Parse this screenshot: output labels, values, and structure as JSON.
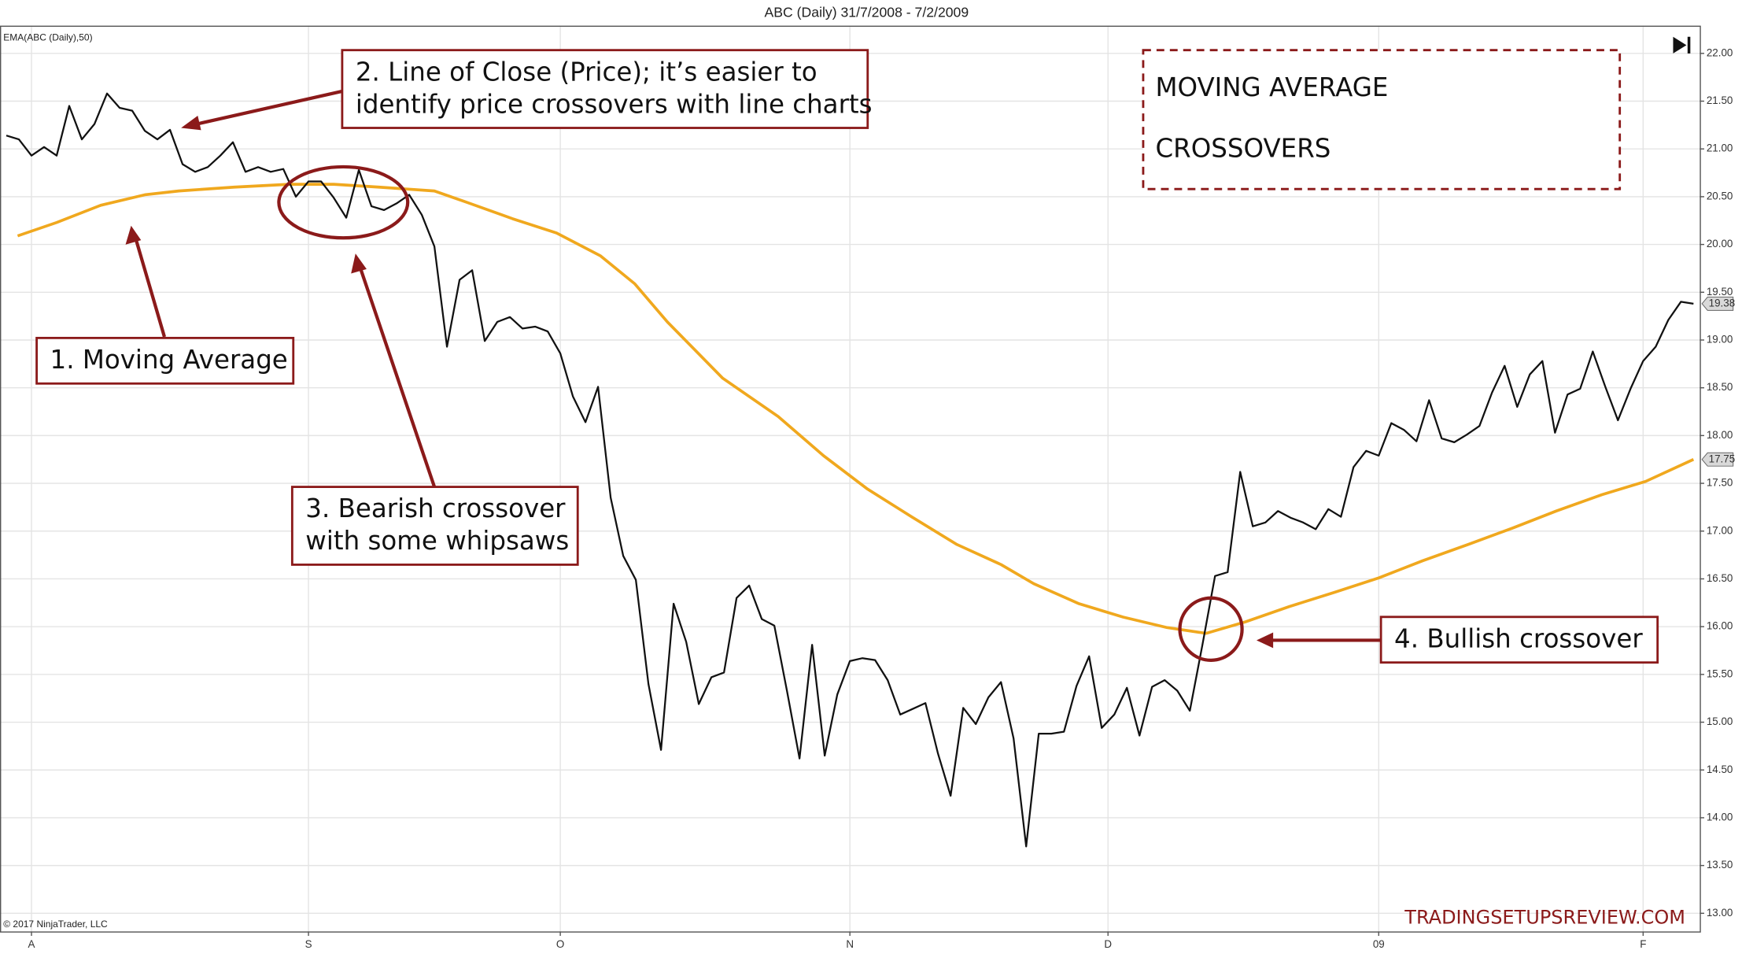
{
  "chart_data": {
    "type": "line",
    "title": "ABC (Daily)  31/7/2008 - 7/2/2009",
    "indicator_label": "EMA(ABC (Daily),50)",
    "copyright": "© 2017 NinjaTrader, LLC",
    "watermark": "TRADINGSETUPSREVIEW.COM",
    "headline": [
      "MOVING AVERAGE",
      "CROSSOVERS"
    ],
    "annotations": [
      [
        "1. Moving Average"
      ],
      [
        "2. Line of Close (Price); it’s easier to",
        "identify price crossovers with line charts"
      ],
      [
        "3. Bearish crossover",
        "with some whipsaws"
      ],
      [
        "4. Bullish crossover"
      ]
    ],
    "grid": true,
    "xlim": [
      -0.5,
      134.5
    ],
    "xticks": [
      {
        "value": 2,
        "label": "A"
      },
      {
        "value": 24,
        "label": "S"
      },
      {
        "value": 44,
        "label": "O"
      },
      {
        "value": 67,
        "label": "N"
      },
      {
        "value": 87.5,
        "label": "D"
      },
      {
        "value": 109,
        "label": "09"
      },
      {
        "value": 130,
        "label": "F"
      }
    ],
    "ylim": [
      12.81,
      22.29
    ],
    "yticks": [
      {
        "value": 13,
        "label": "13.00"
      },
      {
        "value": 13.5,
        "label": "13.50"
      },
      {
        "value": 14,
        "label": "14.00"
      },
      {
        "value": 14.5,
        "label": "14.50"
      },
      {
        "value": 15,
        "label": "15.00"
      },
      {
        "value": 15.5,
        "label": "15.50"
      },
      {
        "value": 16,
        "label": "16.00"
      },
      {
        "value": 16.5,
        "label": "16.50"
      },
      {
        "value": 17,
        "label": "17.00"
      },
      {
        "value": 17.5,
        "label": "17.50"
      },
      {
        "value": 18,
        "label": "18.00"
      },
      {
        "value": 18.5,
        "label": "18.50"
      },
      {
        "value": 19,
        "label": "19.00"
      },
      {
        "value": 19.5,
        "label": "19.50"
      },
      {
        "value": 20,
        "label": "20.00"
      },
      {
        "value": 20.5,
        "label": "20.50"
      },
      {
        "value": 21,
        "label": "21.00"
      },
      {
        "value": 21.5,
        "label": "21.50"
      },
      {
        "value": 22,
        "label": "22.00"
      }
    ],
    "x": [
      0,
      1,
      2,
      3,
      4,
      5,
      6,
      7,
      8,
      9,
      10,
      11,
      12,
      13,
      14,
      15,
      16,
      17,
      18,
      19,
      20,
      21,
      22,
      23,
      24,
      25,
      26,
      27,
      28,
      29,
      30,
      31,
      32,
      33,
      34,
      35,
      36,
      37,
      38,
      39,
      40,
      41,
      42,
      43,
      44,
      45,
      46,
      47,
      48,
      49,
      50,
      51,
      52,
      53,
      54,
      55,
      56,
      57,
      58,
      59,
      60,
      61,
      62,
      63,
      64,
      65,
      66,
      67,
      68,
      69,
      70,
      71,
      72,
      73,
      74,
      75,
      76,
      77,
      78,
      79,
      80,
      81,
      82,
      83,
      84,
      85,
      86,
      87,
      88,
      89,
      90,
      91,
      92,
      93,
      94,
      95,
      96,
      97,
      98,
      99,
      100,
      101,
      102,
      103,
      104,
      105,
      106,
      107,
      108,
      109,
      110,
      111,
      112,
      113,
      114,
      115,
      116,
      117,
      118,
      119,
      120,
      121,
      122,
      123,
      124,
      125,
      126,
      127,
      128,
      129,
      130,
      131,
      132,
      133,
      134
    ],
    "series": [
      {
        "color": "#111111",
        "values": [
          21.14,
          21.1,
          20.93,
          21.02,
          20.93,
          21.45,
          21.1,
          21.26,
          21.58,
          21.43,
          21.4,
          21.19,
          21.1,
          21.2,
          20.84,
          20.76,
          20.81,
          20.93,
          21.07,
          20.76,
          20.81,
          20.76,
          20.79,
          20.5,
          20.66,
          20.66,
          20.49,
          20.28,
          20.78,
          20.4,
          20.36,
          20.43,
          20.52,
          20.31,
          19.98,
          18.93,
          19.63,
          19.73,
          18.99,
          19.19,
          19.24,
          19.12,
          19.14,
          19.09,
          18.86,
          18.41,
          18.14,
          18.51,
          17.35,
          16.74,
          16.49,
          15.4,
          14.71,
          16.24,
          15.84,
          15.19,
          15.47,
          15.52,
          16.3,
          16.43,
          16.08,
          16.01,
          15.33,
          14.62,
          15.81,
          14.65,
          15.29,
          15.64,
          15.67,
          15.65,
          15.44,
          15.08,
          15.14,
          15.2,
          14.67,
          14.23,
          15.15,
          14.98,
          15.26,
          15.42,
          14.83,
          13.7,
          14.88,
          14.88,
          14.9,
          15.38,
          15.69,
          14.94,
          15.08,
          15.36,
          14.86,
          15.37,
          15.44,
          15.33,
          15.12,
          15.81,
          16.53,
          16.57,
          17.62,
          17.05,
          17.09,
          17.21,
          17.14,
          17.09,
          17.02,
          17.23,
          17.15,
          17.67,
          17.84,
          17.79,
          18.13,
          18.06,
          17.94,
          18.37,
          17.97,
          17.93,
          18.01,
          18.1,
          18.45,
          18.73,
          18.3,
          18.64,
          18.78,
          18.03,
          18.43,
          18.49,
          18.88,
          18.51,
          18.16,
          18.49,
          18.78,
          18.93,
          19.21,
          19.4,
          19.38
        ]
      },
      {
        "color": "#f0a81e",
        "x": [
          0.9,
          4.0,
          7.5,
          11.0,
          13.7,
          18.1,
          22.5,
          26.0,
          29.6,
          34.0,
          36.6,
          40.2,
          43.7,
          47.2,
          49.9,
          52.5,
          56.9,
          61.3,
          64.9,
          68.4,
          71.9,
          75.5,
          79.0,
          81.6,
          85.2,
          88.7,
          92.2,
          95.3,
          98.4,
          101.9,
          105.5,
          109.0,
          112.5,
          116.1,
          119.6,
          123.1,
          126.7,
          130.2,
          134.0
        ],
        "values": [
          20.09,
          20.23,
          20.41,
          20.52,
          20.56,
          20.6,
          20.63,
          20.63,
          20.6,
          20.56,
          20.44,
          20.27,
          20.12,
          19.88,
          19.59,
          19.19,
          18.6,
          18.2,
          17.79,
          17.44,
          17.15,
          16.86,
          16.65,
          16.45,
          16.24,
          16.1,
          15.99,
          15.93,
          16.05,
          16.21,
          16.36,
          16.51,
          16.69,
          16.86,
          17.03,
          17.21,
          17.38,
          17.52,
          17.75
        ]
      }
    ]
  }
}
